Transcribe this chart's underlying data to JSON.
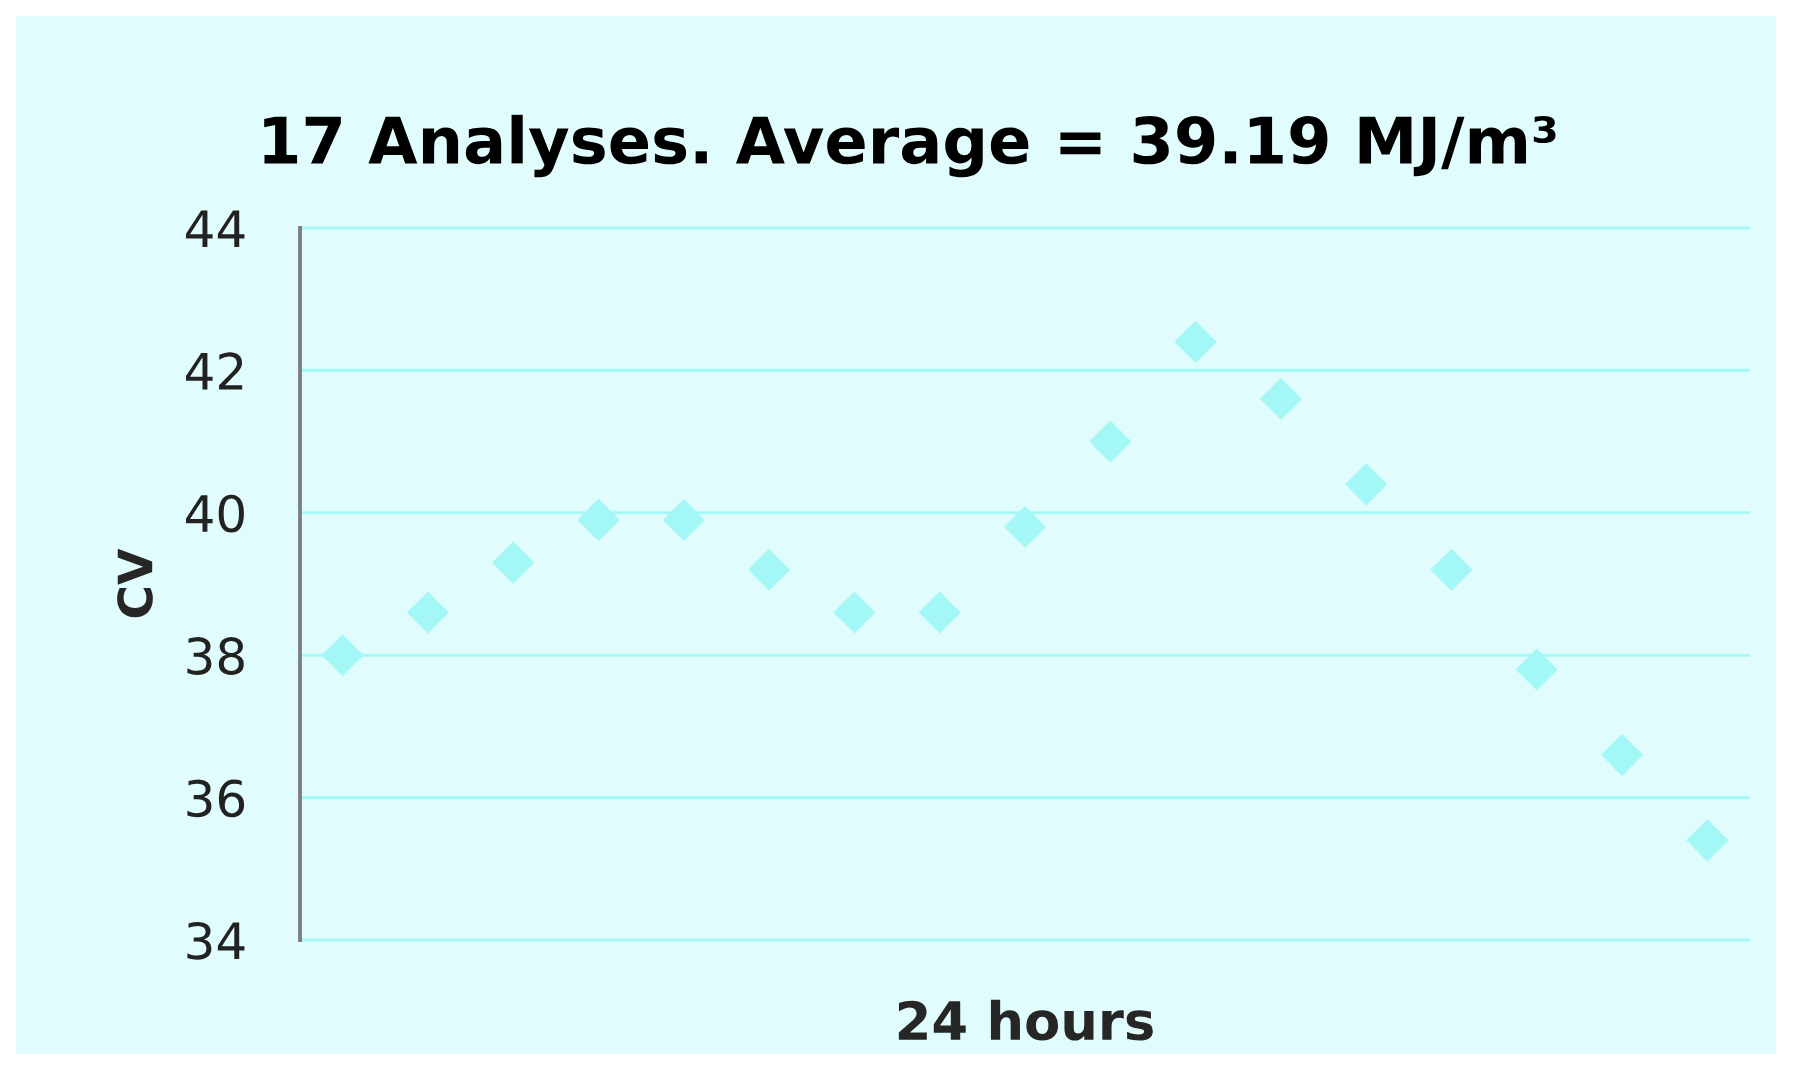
{
  "chart_data": {
    "type": "scatter",
    "title": "17 Analyses. Average = 39.19 MJ/m³",
    "xlabel": "24 hours",
    "ylabel": "CV",
    "categories": [
      null,
      null,
      null,
      null,
      null,
      null,
      null,
      null,
      null,
      null,
      null,
      null,
      null,
      null,
      null,
      null,
      null
    ],
    "series": [
      {
        "color": "#a3f7f7",
        "values": [
          38.0,
          38.6,
          39.3,
          39.9,
          39.9,
          39.2,
          38.6,
          38.6,
          39.8,
          41.0,
          42.4,
          41.6,
          40.4,
          39.2,
          37.8,
          36.6,
          35.4
        ]
      }
    ],
    "ylim": [
      34,
      44
    ],
    "yticks": [
      34,
      36,
      38,
      40,
      42,
      44
    ],
    "grid": "y",
    "marker": "diamond"
  }
}
